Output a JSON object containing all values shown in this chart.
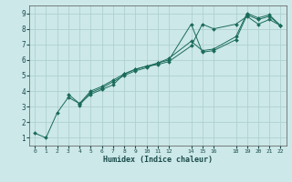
{
  "xlabel": "Humidex (Indice chaleur)",
  "bg_color": "#cce8e8",
  "grid_color": "#aacccc",
  "line_color": "#1a6b5a",
  "xlim": [
    -0.5,
    22.5
  ],
  "ylim": [
    0.5,
    9.5
  ],
  "xticks": [
    0,
    1,
    2,
    3,
    4,
    5,
    6,
    7,
    8,
    9,
    10,
    11,
    12,
    14,
    15,
    16,
    18,
    19,
    20,
    21,
    22
  ],
  "yticks": [
    1,
    2,
    3,
    4,
    5,
    6,
    7,
    8,
    9
  ],
  "lines": [
    {
      "x": [
        0,
        1,
        2,
        3,
        4
      ],
      "y": [
        1.3,
        1.0,
        2.6,
        3.6,
        3.2
      ]
    },
    {
      "x": [
        3,
        4,
        5,
        6,
        7,
        8,
        9,
        10,
        11,
        12,
        14,
        15,
        16,
        18,
        19,
        20,
        21,
        22
      ],
      "y": [
        3.8,
        3.2,
        3.8,
        4.1,
        4.4,
        5.1,
        5.4,
        5.6,
        5.7,
        5.9,
        6.9,
        8.3,
        8.0,
        8.3,
        8.8,
        8.3,
        8.6,
        8.2
      ]
    },
    {
      "x": [
        4,
        5,
        6,
        7,
        8,
        9,
        10,
        11,
        12,
        14,
        15,
        16,
        18,
        19,
        20,
        21,
        22
      ],
      "y": [
        3.1,
        3.9,
        4.2,
        4.6,
        5.0,
        5.3,
        5.5,
        5.8,
        6.0,
        8.3,
        6.5,
        6.6,
        7.3,
        8.9,
        8.6,
        8.8,
        8.2
      ]
    },
    {
      "x": [
        4,
        5,
        6,
        7,
        8,
        9,
        10,
        11,
        12,
        14,
        15,
        16,
        18,
        19,
        20,
        21,
        22
      ],
      "y": [
        3.2,
        4.0,
        4.3,
        4.7,
        5.1,
        5.4,
        5.6,
        5.8,
        6.1,
        7.2,
        6.6,
        6.7,
        7.5,
        9.0,
        8.7,
        8.9,
        8.2
      ]
    }
  ]
}
